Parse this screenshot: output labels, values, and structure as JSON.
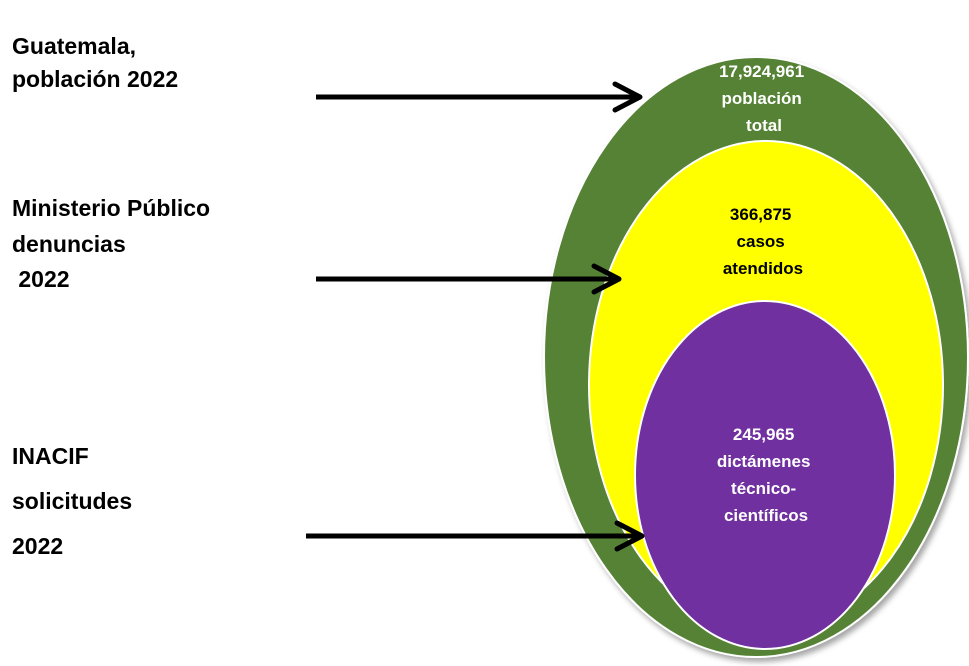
{
  "colors": {
    "outer_ellipse": "#548235",
    "middle_ellipse": "#FFFF00",
    "inner_ellipse": "#7030A0",
    "arrow": "#000000"
  },
  "labels": {
    "poblacion": [
      "Guatemala,",
      "población 2022"
    ],
    "ministerio": [
      "Ministerio Público",
      "denuncias",
      " 2022"
    ],
    "inacif": [
      "INACIF",
      "solicitudes",
      "2022"
    ]
  },
  "ellipses": {
    "outer": [
      "17,924,961",
      "población",
      "total"
    ],
    "middle": [
      "366,875",
      "casos",
      "atendidos"
    ],
    "inner": [
      "245,965",
      "dictámenes",
      "técnico-",
      "científicos"
    ]
  }
}
